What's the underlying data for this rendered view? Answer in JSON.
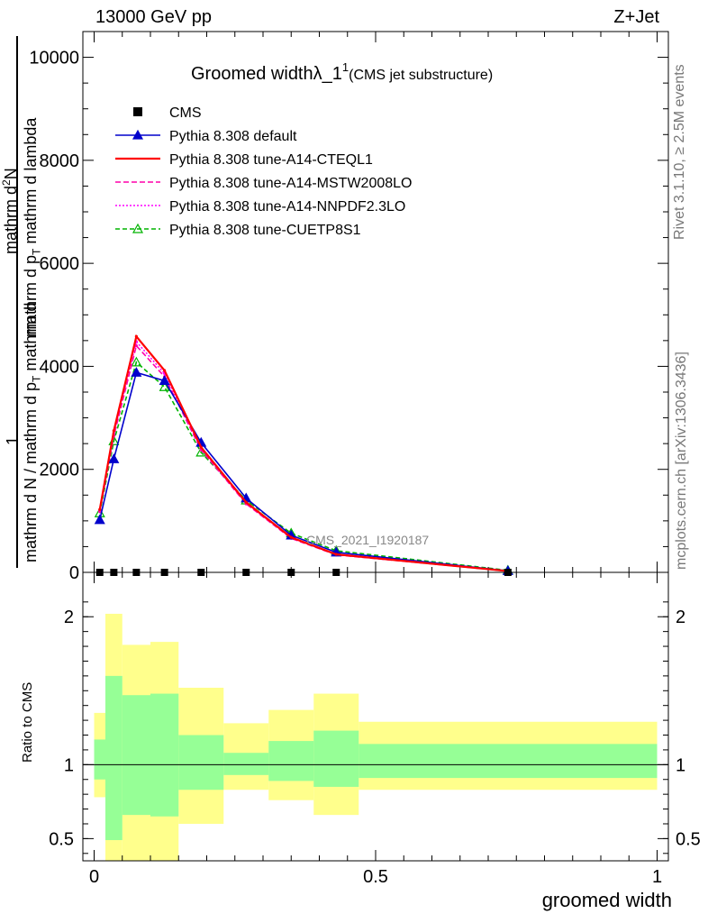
{
  "header": {
    "left": "13000 GeV pp",
    "right": "Z+Jet"
  },
  "side_text": {
    "rivet": "Rivet 3.1.10, ≥ 2.5M events",
    "mcplots": "mcplots.cern.ch [arXiv:1306.3436]"
  },
  "chart_data": [
    {
      "type": "line",
      "title": "Groomed widthλ_1",
      "title_sup": "1",
      "subtitle": "(CMS jet substructure)",
      "watermark": "CMS_2021_I1920187",
      "ylabel_parts": [
        "1",
        "mathrm d N / mathrm d p",
        "T",
        "mathrm d",
        "mathrm d",
        "2",
        "N",
        "mathrm d p",
        "T",
        "mathrm d lambda"
      ],
      "ylim": [
        0,
        10500
      ],
      "xlim": [
        -0.02,
        1.02
      ],
      "yticks": [
        {
          "v": 0,
          "label": "0"
        },
        {
          "v": 2000,
          "label": "2000"
        },
        {
          "v": 4000,
          "label": "4000"
        },
        {
          "v": 6000,
          "label": "6000"
        },
        {
          "v": 8000,
          "label": "8000"
        },
        {
          "v": 10000,
          "label": "10000"
        }
      ],
      "series": [
        {
          "name": "CMS",
          "color": "#000000",
          "style": "square",
          "x": [
            0.01,
            0.035,
            0.075,
            0.125,
            0.19,
            0.27,
            0.35,
            0.43,
            0.735
          ],
          "y": [
            0,
            0,
            0,
            0,
            0,
            0,
            0,
            0,
            0
          ]
        },
        {
          "name": "Pythia 8.308 default",
          "color": "#0000cc",
          "style": "triangle",
          "x": [
            0.01,
            0.035,
            0.075,
            0.125,
            0.19,
            0.27,
            0.35,
            0.43,
            0.735
          ],
          "y": [
            1020,
            2200,
            3880,
            3720,
            2520,
            1440,
            720,
            390,
            30
          ]
        },
        {
          "name": "Pythia 8.308 tune-A14-CTEQL1",
          "color": "#ff0000",
          "style": "solid",
          "x": [
            0.01,
            0.035,
            0.075,
            0.125,
            0.19,
            0.27,
            0.35,
            0.43,
            0.735
          ],
          "y": [
            1220,
            2750,
            4580,
            3920,
            2430,
            1360,
            680,
            350,
            25
          ]
        },
        {
          "name": "Pythia 8.308 tune-A14-MSTW2008LO",
          "color": "#ff00aa",
          "style": "dashed",
          "x": [
            0.01,
            0.035,
            0.075,
            0.125,
            0.19,
            0.27,
            0.35,
            0.43,
            0.735
          ],
          "y": [
            1180,
            2650,
            4400,
            3800,
            2380,
            1330,
            660,
            340,
            25
          ]
        },
        {
          "name": "Pythia 8.308 tune-A14-NNPDF2.3LO",
          "color": "#ff00ff",
          "style": "dotted",
          "x": [
            0.01,
            0.035,
            0.075,
            0.125,
            0.19,
            0.27,
            0.35,
            0.43,
            0.735
          ],
          "y": [
            1200,
            2700,
            4480,
            3860,
            2400,
            1340,
            670,
            345,
            25
          ]
        },
        {
          "name": "Pythia 8.308 tune-CUETP8S1",
          "color": "#00b400",
          "style": "dashed-triangle",
          "x": [
            0.01,
            0.035,
            0.075,
            0.125,
            0.19,
            0.27,
            0.35,
            0.43,
            0.735
          ],
          "y": [
            1150,
            2550,
            4080,
            3600,
            2330,
            1400,
            760,
            420,
            40
          ]
        }
      ]
    },
    {
      "type": "area",
      "ylabel": "Ratio to CMS",
      "xlabel": "groomed width",
      "xlim": [
        -0.02,
        1.02
      ],
      "ylim": [
        0.35,
        2.3
      ],
      "yticks": [
        {
          "v": 0.5,
          "label": "0.5"
        },
        {
          "v": 1,
          "label": "1"
        },
        {
          "v": 2,
          "label": "2"
        }
      ],
      "xticks": [
        {
          "v": 0,
          "label": "0"
        },
        {
          "v": 0.5,
          "label": "0.5"
        },
        {
          "v": 1,
          "label": "1"
        }
      ],
      "band_colors": {
        "outer": "#ffff8c",
        "inner": "#96ff96"
      },
      "bins": [
        {
          "x0": 0.0,
          "x1": 0.02,
          "in_lo": 0.9,
          "in_hi": 1.17,
          "out_lo": 0.78,
          "out_hi": 1.35
        },
        {
          "x0": 0.02,
          "x1": 0.05,
          "in_lo": 0.49,
          "in_hi": 1.6,
          "out_lo": 0.35,
          "out_hi": 2.02
        },
        {
          "x0": 0.05,
          "x1": 0.1,
          "in_lo": 0.66,
          "in_hi": 1.47,
          "out_lo": 0.35,
          "out_hi": 1.81
        },
        {
          "x0": 0.1,
          "x1": 0.15,
          "in_lo": 0.65,
          "in_hi": 1.48,
          "out_lo": 0.35,
          "out_hi": 1.83
        },
        {
          "x0": 0.15,
          "x1": 0.23,
          "in_lo": 0.83,
          "in_hi": 1.2,
          "out_lo": 0.6,
          "out_hi": 1.52
        },
        {
          "x0": 0.23,
          "x1": 0.31,
          "in_lo": 0.93,
          "in_hi": 1.08,
          "out_lo": 0.83,
          "out_hi": 1.28
        },
        {
          "x0": 0.31,
          "x1": 0.39,
          "in_lo": 0.89,
          "in_hi": 1.16,
          "out_lo": 0.76,
          "out_hi": 1.37
        },
        {
          "x0": 0.39,
          "x1": 0.47,
          "in_lo": 0.85,
          "in_hi": 1.23,
          "out_lo": 0.66,
          "out_hi": 1.48
        },
        {
          "x0": 0.47,
          "x1": 1.0,
          "in_lo": 0.91,
          "in_hi": 1.14,
          "out_lo": 0.83,
          "out_hi": 1.29
        }
      ]
    }
  ]
}
